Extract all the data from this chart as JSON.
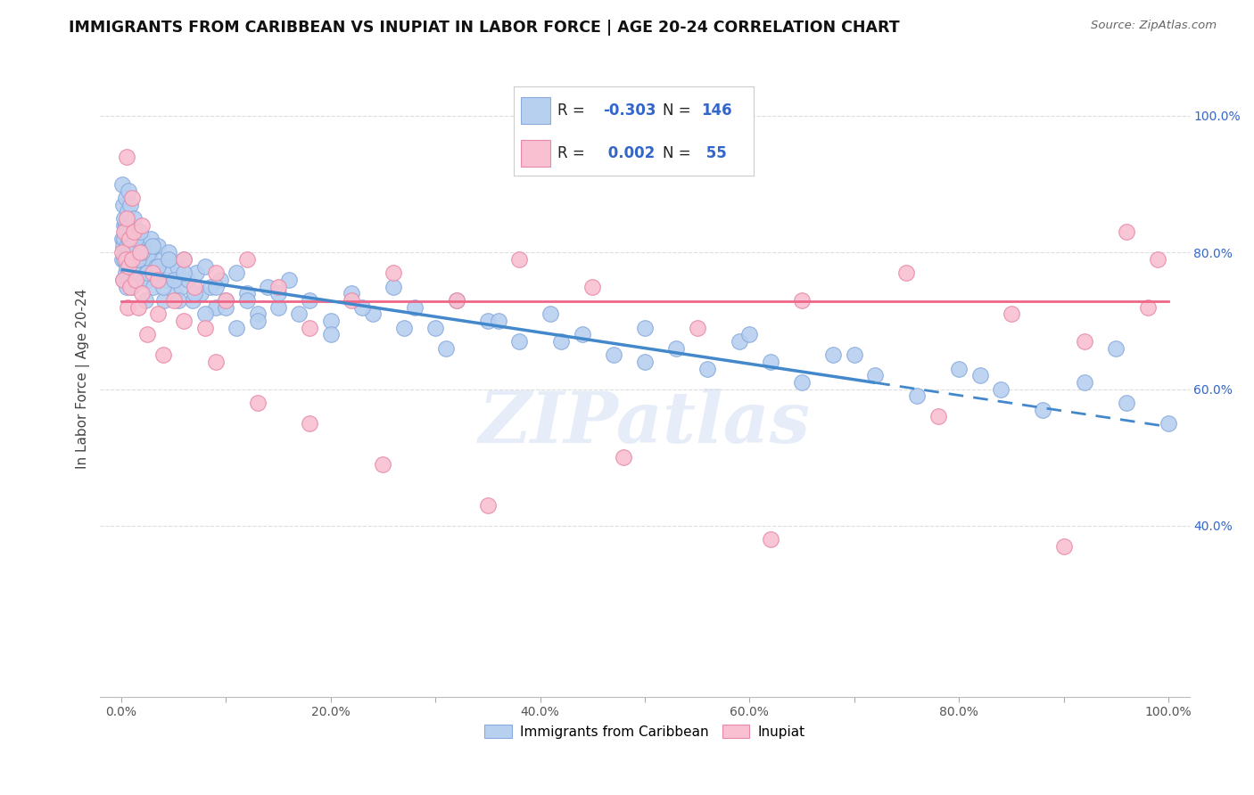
{
  "title": "IMMIGRANTS FROM CARIBBEAN VS INUPIAT IN LABOR FORCE | AGE 20-24 CORRELATION CHART",
  "source": "Source: ZipAtlas.com",
  "ylabel": "In Labor Force | Age 20-24",
  "xlim": [
    -0.02,
    1.02
  ],
  "ylim": [
    0.15,
    1.08
  ],
  "xticks": [
    0.0,
    0.1,
    0.2,
    0.3,
    0.4,
    0.5,
    0.6,
    0.7,
    0.8,
    0.9,
    1.0
  ],
  "xtick_labels": [
    "0.0%",
    "",
    "20.0%",
    "",
    "40.0%",
    "",
    "60.0%",
    "",
    "80.0%",
    "",
    "100.0%"
  ],
  "yticks": [
    0.4,
    0.6,
    0.8,
    1.0
  ],
  "ytick_labels": [
    "40.0%",
    "60.0%",
    "80.0%",
    "100.0%"
  ],
  "series1_color": "#b8d0f0",
  "series1_edge": "#88aadd",
  "series2_color": "#f8c0d0",
  "series2_edge": "#e888a8",
  "trend1_color": "#4488cc",
  "trend2_color": "#ee6688",
  "watermark": "ZIPatlas",
  "background_color": "#ffffff",
  "grid_color": "#dddddd",
  "blue_text_color": "#3366cc",
  "legend_label1": "Immigrants from Caribbean",
  "legend_label2": "Inupiat",
  "trend1_x_start": 0.0,
  "trend1_x_end": 1.0,
  "trend1_y_start": 0.775,
  "trend1_y_end": 0.545,
  "trend1_dash_start": 0.72,
  "trend2_x_start": 0.0,
  "trend2_x_end": 1.0,
  "trend2_y_start": 0.728,
  "trend2_y_end": 0.728,
  "series1_x": [
    0.001,
    0.001,
    0.002,
    0.002,
    0.003,
    0.003,
    0.003,
    0.004,
    0.004,
    0.004,
    0.005,
    0.005,
    0.005,
    0.006,
    0.006,
    0.007,
    0.007,
    0.007,
    0.008,
    0.008,
    0.009,
    0.009,
    0.01,
    0.01,
    0.011,
    0.011,
    0.012,
    0.012,
    0.013,
    0.013,
    0.014,
    0.015,
    0.015,
    0.016,
    0.016,
    0.017,
    0.018,
    0.019,
    0.02,
    0.021,
    0.022,
    0.023,
    0.024,
    0.025,
    0.026,
    0.027,
    0.028,
    0.03,
    0.031,
    0.033,
    0.035,
    0.037,
    0.039,
    0.041,
    0.043,
    0.045,
    0.048,
    0.051,
    0.054,
    0.057,
    0.06,
    0.064,
    0.068,
    0.072,
    0.076,
    0.08,
    0.085,
    0.09,
    0.095,
    0.1,
    0.11,
    0.12,
    0.13,
    0.14,
    0.15,
    0.16,
    0.18,
    0.2,
    0.22,
    0.24,
    0.26,
    0.28,
    0.3,
    0.32,
    0.35,
    0.38,
    0.41,
    0.44,
    0.47,
    0.5,
    0.53,
    0.56,
    0.59,
    0.62,
    0.65,
    0.68,
    0.72,
    0.76,
    0.8,
    0.84,
    0.88,
    0.92,
    0.96,
    1.0,
    0.001,
    0.002,
    0.003,
    0.004,
    0.005,
    0.006,
    0.007,
    0.008,
    0.009,
    0.01,
    0.012,
    0.014,
    0.016,
    0.018,
    0.02,
    0.025,
    0.03,
    0.035,
    0.04,
    0.045,
    0.05,
    0.055,
    0.06,
    0.07,
    0.08,
    0.09,
    0.1,
    0.11,
    0.12,
    0.13,
    0.15,
    0.17,
    0.2,
    0.23,
    0.27,
    0.31,
    0.36,
    0.42,
    0.5,
    0.6,
    0.7,
    0.82,
    0.95
  ],
  "series1_y": [
    0.79,
    0.82,
    0.81,
    0.76,
    0.84,
    0.79,
    0.82,
    0.77,
    0.8,
    0.84,
    0.78,
    0.81,
    0.75,
    0.83,
    0.79,
    0.82,
    0.77,
    0.8,
    0.76,
    0.83,
    0.79,
    0.81,
    0.78,
    0.75,
    0.82,
    0.79,
    0.76,
    0.8,
    0.83,
    0.77,
    0.79,
    0.82,
    0.76,
    0.79,
    0.83,
    0.8,
    0.77,
    0.79,
    0.82,
    0.76,
    0.79,
    0.73,
    0.77,
    0.8,
    0.76,
    0.79,
    0.82,
    0.77,
    0.75,
    0.78,
    0.81,
    0.76,
    0.79,
    0.73,
    0.76,
    0.8,
    0.77,
    0.74,
    0.78,
    0.75,
    0.79,
    0.76,
    0.73,
    0.77,
    0.74,
    0.78,
    0.75,
    0.72,
    0.76,
    0.73,
    0.77,
    0.74,
    0.71,
    0.75,
    0.72,
    0.76,
    0.73,
    0.7,
    0.74,
    0.71,
    0.75,
    0.72,
    0.69,
    0.73,
    0.7,
    0.67,
    0.71,
    0.68,
    0.65,
    0.69,
    0.66,
    0.63,
    0.67,
    0.64,
    0.61,
    0.65,
    0.62,
    0.59,
    0.63,
    0.6,
    0.57,
    0.61,
    0.58,
    0.55,
    0.9,
    0.87,
    0.85,
    0.88,
    0.83,
    0.86,
    0.89,
    0.84,
    0.87,
    0.81,
    0.85,
    0.82,
    0.79,
    0.83,
    0.8,
    0.77,
    0.81,
    0.78,
    0.75,
    0.79,
    0.76,
    0.73,
    0.77,
    0.74,
    0.71,
    0.75,
    0.72,
    0.69,
    0.73,
    0.7,
    0.74,
    0.71,
    0.68,
    0.72,
    0.69,
    0.66,
    0.7,
    0.67,
    0.64,
    0.68,
    0.65,
    0.62,
    0.66
  ],
  "series2_x": [
    0.001,
    0.002,
    0.003,
    0.004,
    0.005,
    0.006,
    0.007,
    0.008,
    0.009,
    0.01,
    0.012,
    0.014,
    0.016,
    0.018,
    0.02,
    0.025,
    0.03,
    0.035,
    0.04,
    0.05,
    0.06,
    0.07,
    0.08,
    0.09,
    0.1,
    0.12,
    0.15,
    0.18,
    0.22,
    0.26,
    0.32,
    0.38,
    0.45,
    0.55,
    0.65,
    0.75,
    0.85,
    0.92,
    0.96,
    0.99,
    0.005,
    0.01,
    0.02,
    0.035,
    0.06,
    0.09,
    0.13,
    0.18,
    0.25,
    0.35,
    0.48,
    0.62,
    0.78,
    0.9,
    0.98
  ],
  "series2_y": [
    0.8,
    0.76,
    0.83,
    0.79,
    0.85,
    0.72,
    0.78,
    0.82,
    0.75,
    0.79,
    0.83,
    0.76,
    0.72,
    0.8,
    0.74,
    0.68,
    0.77,
    0.71,
    0.65,
    0.73,
    0.79,
    0.75,
    0.69,
    0.77,
    0.73,
    0.79,
    0.75,
    0.69,
    0.73,
    0.77,
    0.73,
    0.79,
    0.75,
    0.69,
    0.73,
    0.77,
    0.71,
    0.67,
    0.83,
    0.79,
    0.94,
    0.88,
    0.84,
    0.76,
    0.7,
    0.64,
    0.58,
    0.55,
    0.49,
    0.43,
    0.5,
    0.38,
    0.56,
    0.37,
    0.72
  ]
}
